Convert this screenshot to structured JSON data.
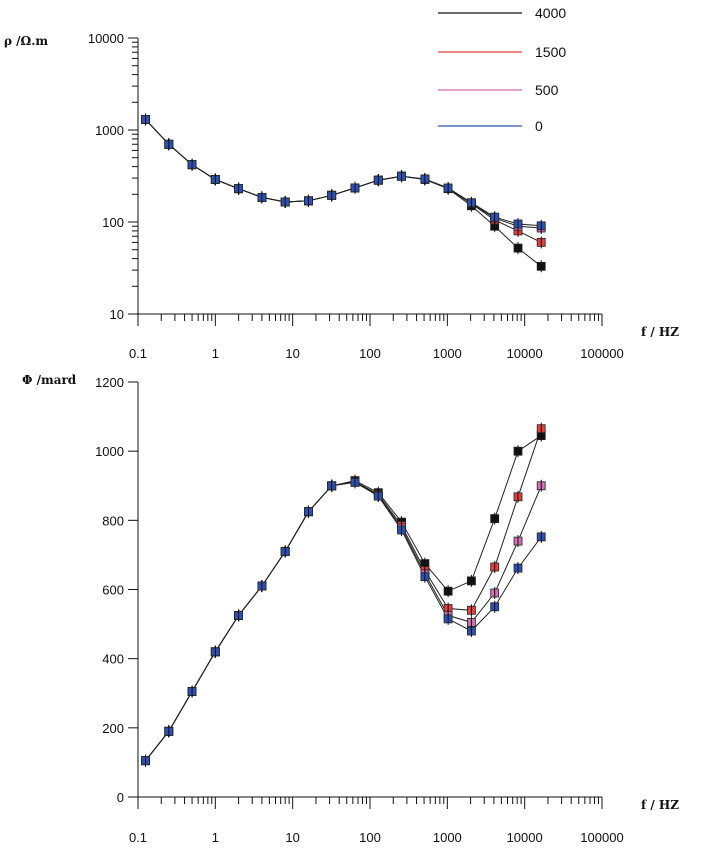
{
  "chart_data": [
    {
      "type": "line",
      "ylabel": "ρ /Ω.m",
      "xlabel": "f / HZ",
      "x_scale": "log",
      "y_scale": "log",
      "xlim": [
        0.1,
        100000
      ],
      "ylim": [
        10,
        10000
      ],
      "x_tick_labels": [
        "0.1",
        "1",
        "10",
        "100",
        "1000",
        "10000",
        "100000"
      ],
      "y_tick_labels": [
        "10",
        "100",
        "1000",
        "10000"
      ],
      "legend_position": "top-right",
      "x": [
        0.125,
        0.25,
        0.5,
        1,
        2,
        4,
        8,
        16,
        32,
        64,
        128,
        256,
        512,
        1024,
        2048,
        4096,
        8192,
        16384
      ],
      "series": [
        {
          "name": "4000",
          "color": "#111111",
          "values": [
            1300,
            700,
            420,
            290,
            230,
            185,
            165,
            170,
            195,
            235,
            285,
            315,
            290,
            230,
            150,
            90,
            52,
            33
          ]
        },
        {
          "name": "1500",
          "color": "#e04040",
          "values": [
            1300,
            700,
            420,
            290,
            230,
            185,
            165,
            170,
            195,
            235,
            285,
            315,
            292,
            232,
            158,
            105,
            80,
            60
          ]
        },
        {
          "name": "500",
          "color": "#d070b0",
          "values": [
            1300,
            700,
            420,
            290,
            230,
            185,
            165,
            170,
            195,
            235,
            285,
            315,
            292,
            233,
            160,
            110,
            90,
            86
          ]
        },
        {
          "name": "0",
          "color": "#3050b0",
          "values": [
            1300,
            700,
            420,
            290,
            230,
            185,
            165,
            170,
            195,
            235,
            285,
            315,
            293,
            234,
            162,
            113,
            95,
            91
          ]
        }
      ]
    },
    {
      "type": "line",
      "ylabel": "Φ /mard",
      "xlabel": "f / HZ",
      "x_scale": "log",
      "y_scale": "linear",
      "xlim": [
        0.1,
        100000
      ],
      "ylim": [
        0,
        1200
      ],
      "x_tick_labels": [
        "0.1",
        "1",
        "10",
        "100",
        "1000",
        "10000",
        "100000"
      ],
      "y_tick_labels": [
        "0",
        "200",
        "400",
        "600",
        "800",
        "1000",
        "1200"
      ],
      "x": [
        0.125,
        0.25,
        0.5,
        1,
        2,
        4,
        8,
        16,
        32,
        64,
        128,
        256,
        512,
        1024,
        2048,
        4096,
        8192,
        16384
      ],
      "series": [
        {
          "name": "4000",
          "color": "#111111",
          "values": [
            105,
            190,
            305,
            420,
            525,
            610,
            710,
            825,
            900,
            915,
            880,
            795,
            675,
            595,
            625,
            805,
            1000,
            1045
          ]
        },
        {
          "name": "1500",
          "color": "#e04040",
          "values": [
            105,
            190,
            305,
            420,
            525,
            610,
            710,
            825,
            900,
            912,
            875,
            785,
            655,
            545,
            540,
            665,
            868,
            1065
          ]
        },
        {
          "name": "500",
          "color": "#d070b0",
          "values": [
            105,
            190,
            305,
            420,
            525,
            610,
            710,
            825,
            900,
            910,
            872,
            778,
            645,
            525,
            505,
            590,
            740,
            900
          ]
        },
        {
          "name": "0",
          "color": "#3050b0",
          "values": [
            105,
            190,
            305,
            420,
            525,
            610,
            710,
            825,
            900,
            910,
            870,
            772,
            637,
            515,
            480,
            550,
            662,
            752
          ]
        }
      ]
    }
  ]
}
